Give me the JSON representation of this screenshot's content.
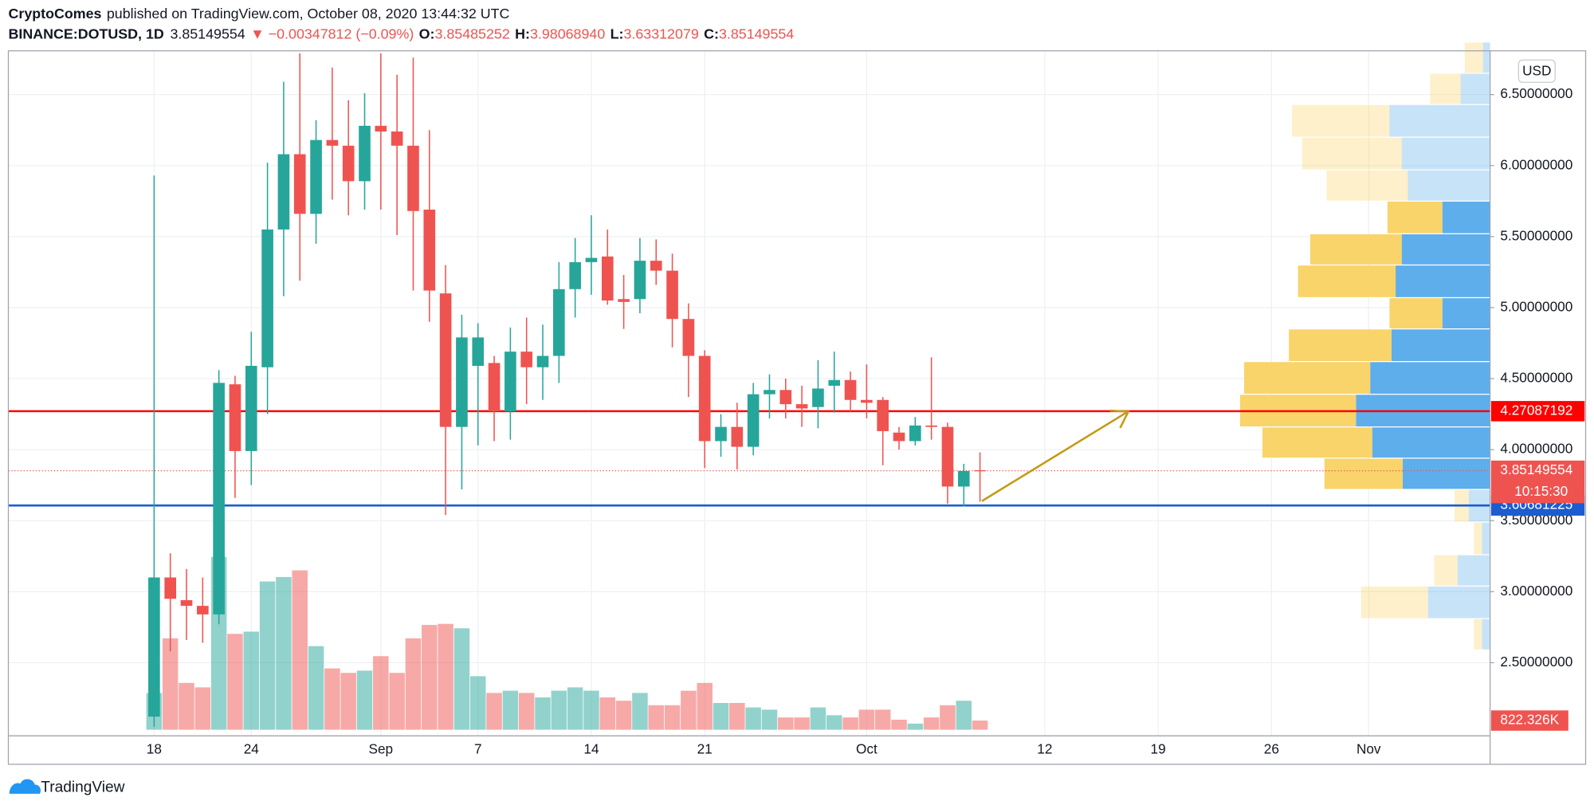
{
  "header": {
    "author": "CryptoComes",
    "published": "published on TradingView.com, October 08, 2020 13:44:32 UTC",
    "symbol": "BINANCE:DOTUSD, 1D",
    "last": "3.85149554",
    "change": "▼ −0.00347812 (−0.09%)",
    "ohlc": [
      {
        "label": "O:",
        "value": "3.85485252"
      },
      {
        "label": "H:",
        "value": "3.98068940"
      },
      {
        "label": "L:",
        "value": "3.63312079"
      },
      {
        "label": "C:",
        "value": "3.85149554"
      }
    ]
  },
  "currency": "USD",
  "countdown": "10:15:30",
  "brand": "TradingView",
  "chart_data": {
    "type": "candlestick",
    "up_color": "#26a69a",
    "down_color": "#ef5350",
    "grid": true,
    "x": [
      0,
      1,
      2,
      3,
      4,
      5,
      6,
      7,
      8,
      9,
      10,
      11,
      12,
      13,
      14,
      15,
      16,
      17,
      18,
      19,
      20,
      21,
      22,
      23,
      24,
      25,
      26,
      27,
      28,
      29,
      30,
      31,
      32,
      33,
      34,
      35,
      36,
      37,
      38,
      39,
      40,
      41,
      42,
      43,
      44,
      45,
      46,
      47,
      48,
      49,
      50,
      51
    ],
    "open": [
      2.12,
      3.1,
      2.94,
      2.9,
      2.84,
      4.46,
      3.99,
      4.58,
      5.55,
      6.08,
      5.66,
      6.18,
      6.14,
      5.89,
      6.28,
      6.24,
      6.14,
      5.69,
      5.1,
      4.16,
      4.59,
      4.61,
      4.27,
      4.69,
      4.58,
      4.66,
      5.13,
      5.32,
      5.36,
      5.06,
      5.06,
      5.33,
      5.26,
      4.92,
      4.66,
      4.06,
      4.16,
      4.02,
      4.39,
      4.42,
      4.32,
      4.3,
      4.45,
      4.49,
      4.35,
      4.35,
      4.12,
      4.06,
      4.17,
      4.16,
      3.74,
      3.85485252
    ],
    "high": [
      5.93,
      3.27,
      3.16,
      3.1,
      4.56,
      4.52,
      4.83,
      6.02,
      6.59,
      6.79,
      6.32,
      6.69,
      6.46,
      6.51,
      6.79,
      6.64,
      6.76,
      6.25,
      5.3,
      4.95,
      4.89,
      4.66,
      4.86,
      4.93,
      4.88,
      5.32,
      5.49,
      5.65,
      5.55,
      5.23,
      5.49,
      5.48,
      5.38,
      5.03,
      4.7,
      4.25,
      4.33,
      4.47,
      4.53,
      4.5,
      4.45,
      4.63,
      4.69,
      4.55,
      4.6,
      4.37,
      4.16,
      4.23,
      4.65,
      4.19,
      3.9,
      3.9806894
    ],
    "low": [
      2.05,
      2.58,
      2.66,
      2.64,
      2.77,
      3.66,
      3.75,
      4.25,
      5.08,
      5.19,
      5.45,
      5.76,
      5.65,
      5.69,
      5.69,
      5.51,
      5.12,
      4.9,
      3.54,
      3.72,
      4.03,
      4.06,
      4.07,
      4.32,
      4.35,
      4.47,
      4.93,
      5.09,
      5.02,
      4.85,
      4.96,
      5.16,
      4.72,
      4.37,
      3.87,
      3.95,
      3.86,
      3.96,
      4.22,
      4.22,
      4.16,
      4.15,
      4.26,
      4.27,
      4.22,
      3.89,
      4.0,
      4.03,
      4.07,
      3.62,
      3.6,
      3.63312079
    ],
    "close": [
      3.1,
      2.95,
      2.9,
      2.84,
      4.47,
      3.99,
      4.59,
      5.55,
      6.08,
      5.66,
      6.18,
      6.14,
      5.89,
      6.28,
      6.24,
      6.14,
      5.68,
      5.12,
      4.16,
      4.79,
      4.79,
      4.27,
      4.69,
      4.58,
      4.66,
      5.13,
      5.32,
      5.35,
      5.05,
      5.04,
      5.33,
      5.26,
      4.92,
      4.66,
      4.06,
      4.16,
      4.02,
      4.39,
      4.42,
      4.32,
      4.29,
      4.43,
      4.49,
      4.35,
      4.33,
      4.13,
      4.06,
      4.17,
      4.16,
      3.74,
      3.85,
      3.85149554
    ],
    "volume": {
      "values": [
        3290000,
        8200000,
        4200000,
        3800000,
        15500000,
        8600000,
        8800000,
        13300000,
        13700000,
        14300000,
        7500000,
        5500000,
        5100000,
        5300000,
        6600000,
        5100000,
        8200000,
        9400000,
        9500000,
        9100000,
        4800000,
        3300000,
        3500000,
        3300000,
        2900000,
        3500000,
        3800000,
        3500000,
        2900000,
        2600000,
        3300000,
        2200000,
        2200000,
        3500000,
        4200000,
        2400000,
        2400000,
        2000000,
        1800000,
        1100000,
        1100000,
        2000000,
        1300000,
        1100000,
        1800000,
        1800000,
        900000,
        550000,
        1100000,
        2200000,
        2600000,
        822326
      ],
      "value_labels": [
        null,
        null,
        null,
        null,
        null,
        null,
        null,
        null,
        null,
        null,
        null,
        null,
        null,
        null,
        null,
        null,
        null,
        null,
        null,
        null,
        null,
        null,
        null,
        null,
        null,
        null,
        null,
        null,
        null,
        null,
        null,
        null,
        null,
        null,
        null,
        null,
        null,
        null,
        null,
        null,
        null,
        null,
        null,
        null,
        null,
        null,
        null,
        null,
        null,
        null,
        null,
        "822.326K"
      ]
    },
    "volume_profile": {
      "up_color": "#5eaeec",
      "down_color": "#f9d46b",
      "edges": [
        2.59,
        2.81,
        3.04,
        3.26,
        3.49,
        3.72,
        3.94,
        4.16,
        4.39,
        4.62,
        4.85,
        5.07,
        5.3,
        5.52,
        5.75,
        5.97,
        6.2,
        6.43,
        6.65,
        6.87
      ],
      "up": [
        8,
        61,
        32,
        8,
        21,
        86,
        116,
        132,
        118,
        97,
        47,
        93,
        87,
        47,
        81,
        87,
        99,
        29,
        7
      ],
      "down": [
        8,
        66,
        23,
        8,
        14,
        77,
        108,
        114,
        124,
        101,
        52,
        96,
        90,
        54,
        80,
        98,
        96,
        30,
        18
      ],
      "value_area": [
        false,
        false,
        false,
        false,
        false,
        true,
        true,
        true,
        true,
        true,
        true,
        true,
        true,
        true,
        false,
        false,
        false,
        false,
        false
      ]
    },
    "hlines": [
      {
        "value": 4.27087192,
        "color": "#ff0000"
      },
      {
        "value": 3.60681225,
        "color": "#1c5ccf"
      }
    ],
    "xlim": [
      -9,
      82.5
    ],
    "xticks": [
      {
        "value": 0,
        "label": "18"
      },
      {
        "value": 6,
        "label": "24"
      },
      {
        "value": 14,
        "label": "Sep"
      },
      {
        "value": 20,
        "label": "7"
      },
      {
        "value": 27,
        "label": "14"
      },
      {
        "value": 34,
        "label": "21"
      },
      {
        "value": 44,
        "label": "Oct"
      },
      {
        "value": 55,
        "label": "12"
      },
      {
        "value": 62,
        "label": "19"
      },
      {
        "value": 69,
        "label": "26"
      },
      {
        "value": 75,
        "label": "Nov"
      }
    ],
    "ylim": [
      1.985,
      6.808
    ],
    "yticks": [
      {
        "value": 2.5,
        "label": "2.50000000"
      },
      {
        "value": 3,
        "label": "3.00000000"
      },
      {
        "value": 3.5,
        "label": "3.50000000"
      },
      {
        "value": 4,
        "label": "4.00000000"
      },
      {
        "value": 4.5,
        "label": "4.50000000"
      },
      {
        "value": 5,
        "label": "5.00000000"
      },
      {
        "value": 5.5,
        "label": "5.50000000"
      },
      {
        "value": 6,
        "label": "6.00000000"
      },
      {
        "value": 6.5,
        "label": "6.50000000"
      }
    ]
  }
}
